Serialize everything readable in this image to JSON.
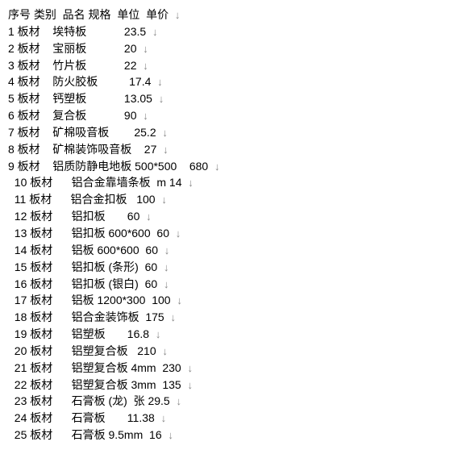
{
  "header": {
    "seq": "序号",
    "cat": "类别",
    "name": "品名",
    "spec": "规格",
    "unit": "单位",
    "price": "单价"
  },
  "rows": [
    {
      "n": "1",
      "cat": "板材",
      "indent": 0,
      "name": "埃特板",
      "spec": "",
      "unit": "",
      "price": "23.5"
    },
    {
      "n": "2",
      "cat": "板材",
      "indent": 0,
      "name": "宝丽板",
      "spec": "",
      "unit": "",
      "price": "20"
    },
    {
      "n": "3",
      "cat": "板材",
      "indent": 0,
      "name": "竹片板",
      "spec": "",
      "unit": "",
      "price": "22"
    },
    {
      "n": "4",
      "cat": "板材",
      "indent": 0,
      "name": "防火胶板",
      "spec": "",
      "unit": "",
      "price": "17.4"
    },
    {
      "n": "5",
      "cat": "板材",
      "indent": 0,
      "name": "钙塑板",
      "spec": "",
      "unit": "",
      "price": "13.05"
    },
    {
      "n": "6",
      "cat": "板材",
      "indent": 0,
      "name": "复合板",
      "spec": "",
      "unit": "",
      "price": "90"
    },
    {
      "n": "7",
      "cat": "板材",
      "indent": 0,
      "name": "矿棉吸音板",
      "spec": "",
      "unit": "",
      "price": "25.2"
    },
    {
      "n": "8",
      "cat": "板材",
      "indent": 0,
      "name": "矿棉装饰吸音板",
      "spec": "",
      "unit": "",
      "price": "27"
    },
    {
      "n": "9",
      "cat": "板材",
      "indent": 0,
      "name": "铝质防静电地板",
      "spec": "500*500",
      "unit": "",
      "price": "680"
    },
    {
      "n": "10",
      "cat": "板材",
      "indent": 1,
      "name": "铝合金靠墙条板",
      "spec": "",
      "unit": "m",
      "price": "14"
    },
    {
      "n": "11",
      "cat": "板材",
      "indent": 1,
      "name": "铝合金扣板",
      "spec": "",
      "unit": "",
      "price": "100"
    },
    {
      "n": "12",
      "cat": "板材",
      "indent": 1,
      "name": "铝扣板",
      "spec": "",
      "unit": "",
      "price": "60"
    },
    {
      "n": "13",
      "cat": "板材",
      "indent": 1,
      "name": "铝扣板",
      "spec": "600*600",
      "unit": "",
      "price": "60"
    },
    {
      "n": "14",
      "cat": "板材",
      "indent": 1,
      "name": "铝板",
      "spec": "600*600",
      "unit": "",
      "price": "60"
    },
    {
      "n": "15",
      "cat": "板材",
      "indent": 1,
      "name": "铝扣板",
      "spec": "(条形)",
      "unit": "",
      "price": "60"
    },
    {
      "n": "16",
      "cat": "板材",
      "indent": 1,
      "name": "铝扣板",
      "spec": "(银白)",
      "unit": "",
      "price": "60"
    },
    {
      "n": "17",
      "cat": "板材",
      "indent": 1,
      "name": "铝板",
      "spec": "1200*300",
      "unit": "",
      "price": "100"
    },
    {
      "n": "18",
      "cat": "板材",
      "indent": 1,
      "name": "铝合金装饰板",
      "spec": "",
      "unit": "",
      "price": "175"
    },
    {
      "n": "19",
      "cat": "板材",
      "indent": 1,
      "name": "铝塑板",
      "spec": "",
      "unit": "",
      "price": "16.8"
    },
    {
      "n": "20",
      "cat": "板材",
      "indent": 1,
      "name": "铝塑复合板",
      "spec": "",
      "unit": "",
      "price": "210"
    },
    {
      "n": "21",
      "cat": "板材",
      "indent": 1,
      "name": "铝塑复合板",
      "spec": "4mm",
      "unit": "",
      "price": "230"
    },
    {
      "n": "22",
      "cat": "板材",
      "indent": 1,
      "name": "铝塑复合板",
      "spec": "3mm",
      "unit": "",
      "price": "135"
    },
    {
      "n": "23",
      "cat": "板材",
      "indent": 1,
      "name": "石膏板",
      "spec": "(龙)",
      "unit": "张",
      "price": "29.5"
    },
    {
      "n": "24",
      "cat": "板材",
      "indent": 1,
      "name": "石膏板",
      "spec": "",
      "unit": "",
      "price": "11.38"
    },
    {
      "n": "25",
      "cat": "板材",
      "indent": 1,
      "name": "石膏板",
      "spec": "9.5mm",
      "unit": "",
      "price": "16"
    }
  ],
  "arrow": "↓"
}
